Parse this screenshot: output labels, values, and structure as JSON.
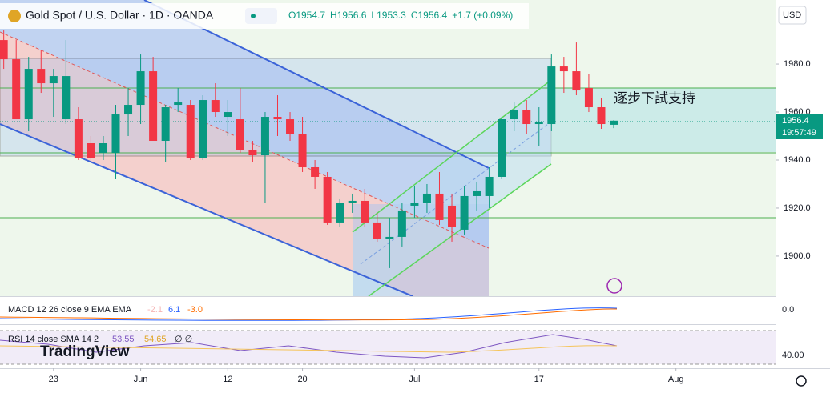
{
  "chart_data": {
    "type": "candlestick",
    "title": "Gold Spot / U.S. Dollar · 1D · OANDA",
    "ohlc_legend": [
      "O1954.7",
      "H1956.6",
      "L1953.3",
      "C1956.4",
      "+1.7 (+0.09%)"
    ],
    "currency": "USD",
    "countdown": "19:57:49",
    "annotation": "逐步下試支持",
    "up_color": "#089981",
    "down_color": "#f23645",
    "open": [
      1990,
      1982,
      1957,
      1978,
      1972,
      1957,
      1957,
      1947,
      1943,
      1943,
      1959,
      1963,
      1977,
      1948,
      1963,
      1963,
      1941,
      1965,
      1958,
      1957,
      1944,
      1942,
      1958,
      1957,
      1951,
      1937,
      1933,
      1914,
      1922,
      1923,
      1914,
      1907,
      1908,
      1921,
      1922,
      1926,
      1921,
      1911,
      1925,
      1925,
      1933,
      1957,
      1961,
      1955,
      1955,
      1979,
      1977,
      1970,
      1962,
      1954.7
    ],
    "high": [
      1994,
      1990,
      1983,
      1986,
      1978,
      1990,
      1962,
      1950,
      1950,
      1963,
      1970,
      1984,
      1983,
      1963,
      1970,
      1965,
      1967,
      1972,
      1965,
      1970,
      1948,
      1960,
      1967,
      1960,
      1958,
      1940,
      1935,
      1924,
      1926,
      1928,
      1918,
      1916,
      1922,
      1929,
      1930,
      1935,
      1926,
      1929,
      1931,
      1937,
      1958,
      1964,
      1965,
      1962,
      1984,
      1983,
      1989,
      1976,
      1966,
      1956.6
    ],
    "low": [
      1978,
      1957,
      1952,
      1968,
      1958,
      1955,
      1940,
      1940,
      1940,
      1932,
      1950,
      1955,
      1948,
      1939,
      1960,
      1940,
      1940,
      1958,
      1950,
      1943,
      1939,
      1922,
      1950,
      1948,
      1935,
      1928,
      1913,
      1912,
      1918,
      1912,
      1906,
      1895,
      1904,
      1916,
      1918,
      1913,
      1906,
      1909,
      1919,
      1920,
      1932,
      1952,
      1951,
      1946,
      1952,
      1968,
      1967,
      1960,
      1953,
      1953.3
    ],
    "close": [
      1982,
      1957,
      1978,
      1972,
      1975,
      1975,
      1941,
      1941,
      1947,
      1959,
      1963,
      1977,
      1948,
      1962,
      1964,
      1941,
      1965,
      1960,
      1960,
      1944,
      1942,
      1958,
      1957,
      1951,
      1937,
      1933,
      1914,
      1922,
      1923,
      1914,
      1907,
      1908,
      1919,
      1922,
      1926,
      1915,
      1912,
      1925,
      1927,
      1933,
      1957,
      1961,
      1955,
      1956,
      1979,
      1977,
      1969,
      1962,
      1955,
      1956.4
    ],
    "xlim": [
      -0.3,
      62
    ],
    "xticks": [
      {
        "value": 4,
        "label": "23"
      },
      {
        "value": 11,
        "label": "Jun"
      },
      {
        "value": 18,
        "label": "12"
      },
      {
        "value": 24,
        "label": "20"
      },
      {
        "value": 33,
        "label": "Jul"
      },
      {
        "value": 43,
        "label": "17"
      },
      {
        "value": 54,
        "label": "Aug"
      }
    ],
    "ylim": [
      1883.3,
      2006.7
    ],
    "yticks": [
      {
        "value": 1900,
        "label": "1900.0"
      },
      {
        "value": 1920,
        "label": "1920.0"
      },
      {
        "value": 1940,
        "label": "1940.0"
      },
      {
        "value": 1960,
        "label": "1960.0"
      },
      {
        "value": 1980,
        "label": "1980.0"
      }
    ],
    "macd": {
      "label": "MACD 12 26 close 9 EMA EMA",
      "values": [
        "-2.1",
        "6.1",
        "-3.0"
      ],
      "axis_label": "0.0"
    },
    "rsi": {
      "label": "RSI 14 close SMA 14 2",
      "values": [
        "53.55",
        "54.65",
        "∅ ∅"
      ],
      "axis_label": "40.00"
    },
    "brand": "TradingView"
  }
}
